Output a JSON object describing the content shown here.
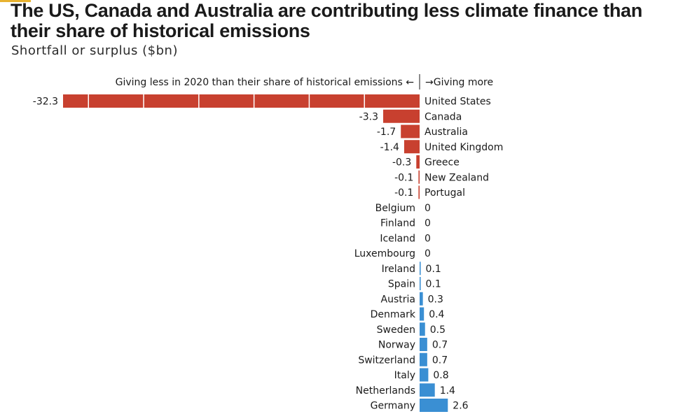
{
  "title": "The US, Canada and Australia are contributing less climate finance than their share of historical emissions",
  "subtitle": "Shortfall or surplus ($bn)",
  "colors": {
    "negative": "#c8402f",
    "positive": "#3a8fd3",
    "accent": "#e8b230"
  },
  "chart_data": {
    "type": "bar",
    "orientation": "horizontal",
    "title": "The US, Canada and Australia are contributing less climate finance than their share of historical emissions",
    "subtitle": "Shortfall or surplus ($bn)",
    "annotation_left": "Giving less in 2020 than their share of historical emissions ←",
    "annotation_right": "→Giving more",
    "categories": [
      "United States",
      "Canada",
      "Australia",
      "United Kingdom",
      "Greece",
      "New Zealand",
      "Portugal",
      "Belgium",
      "Finland",
      "Iceland",
      "Luxembourg",
      "Ireland",
      "Spain",
      "Austria",
      "Denmark",
      "Sweden",
      "Norway",
      "Switzerland",
      "Italy",
      "Netherlands",
      "Germany"
    ],
    "values": [
      -32.3,
      -3.3,
      -1.7,
      -1.4,
      -0.3,
      -0.1,
      -0.1,
      0,
      0,
      0,
      0,
      0.1,
      0.1,
      0.3,
      0.4,
      0.5,
      0.7,
      0.7,
      0.8,
      1.4,
      2.6
    ],
    "value_labels": [
      "-32.3",
      "-3.3",
      "-1.7",
      "-1.4",
      "-0.3",
      "-0.1",
      "-0.1",
      "0",
      "0",
      "0",
      "0",
      "0.1",
      "0.1",
      "0.3",
      "0.4",
      "0.5",
      "0.7",
      "0.7",
      "0.8",
      "1.4",
      "2.6"
    ],
    "xlim": [
      -32.3,
      0
    ]
  }
}
